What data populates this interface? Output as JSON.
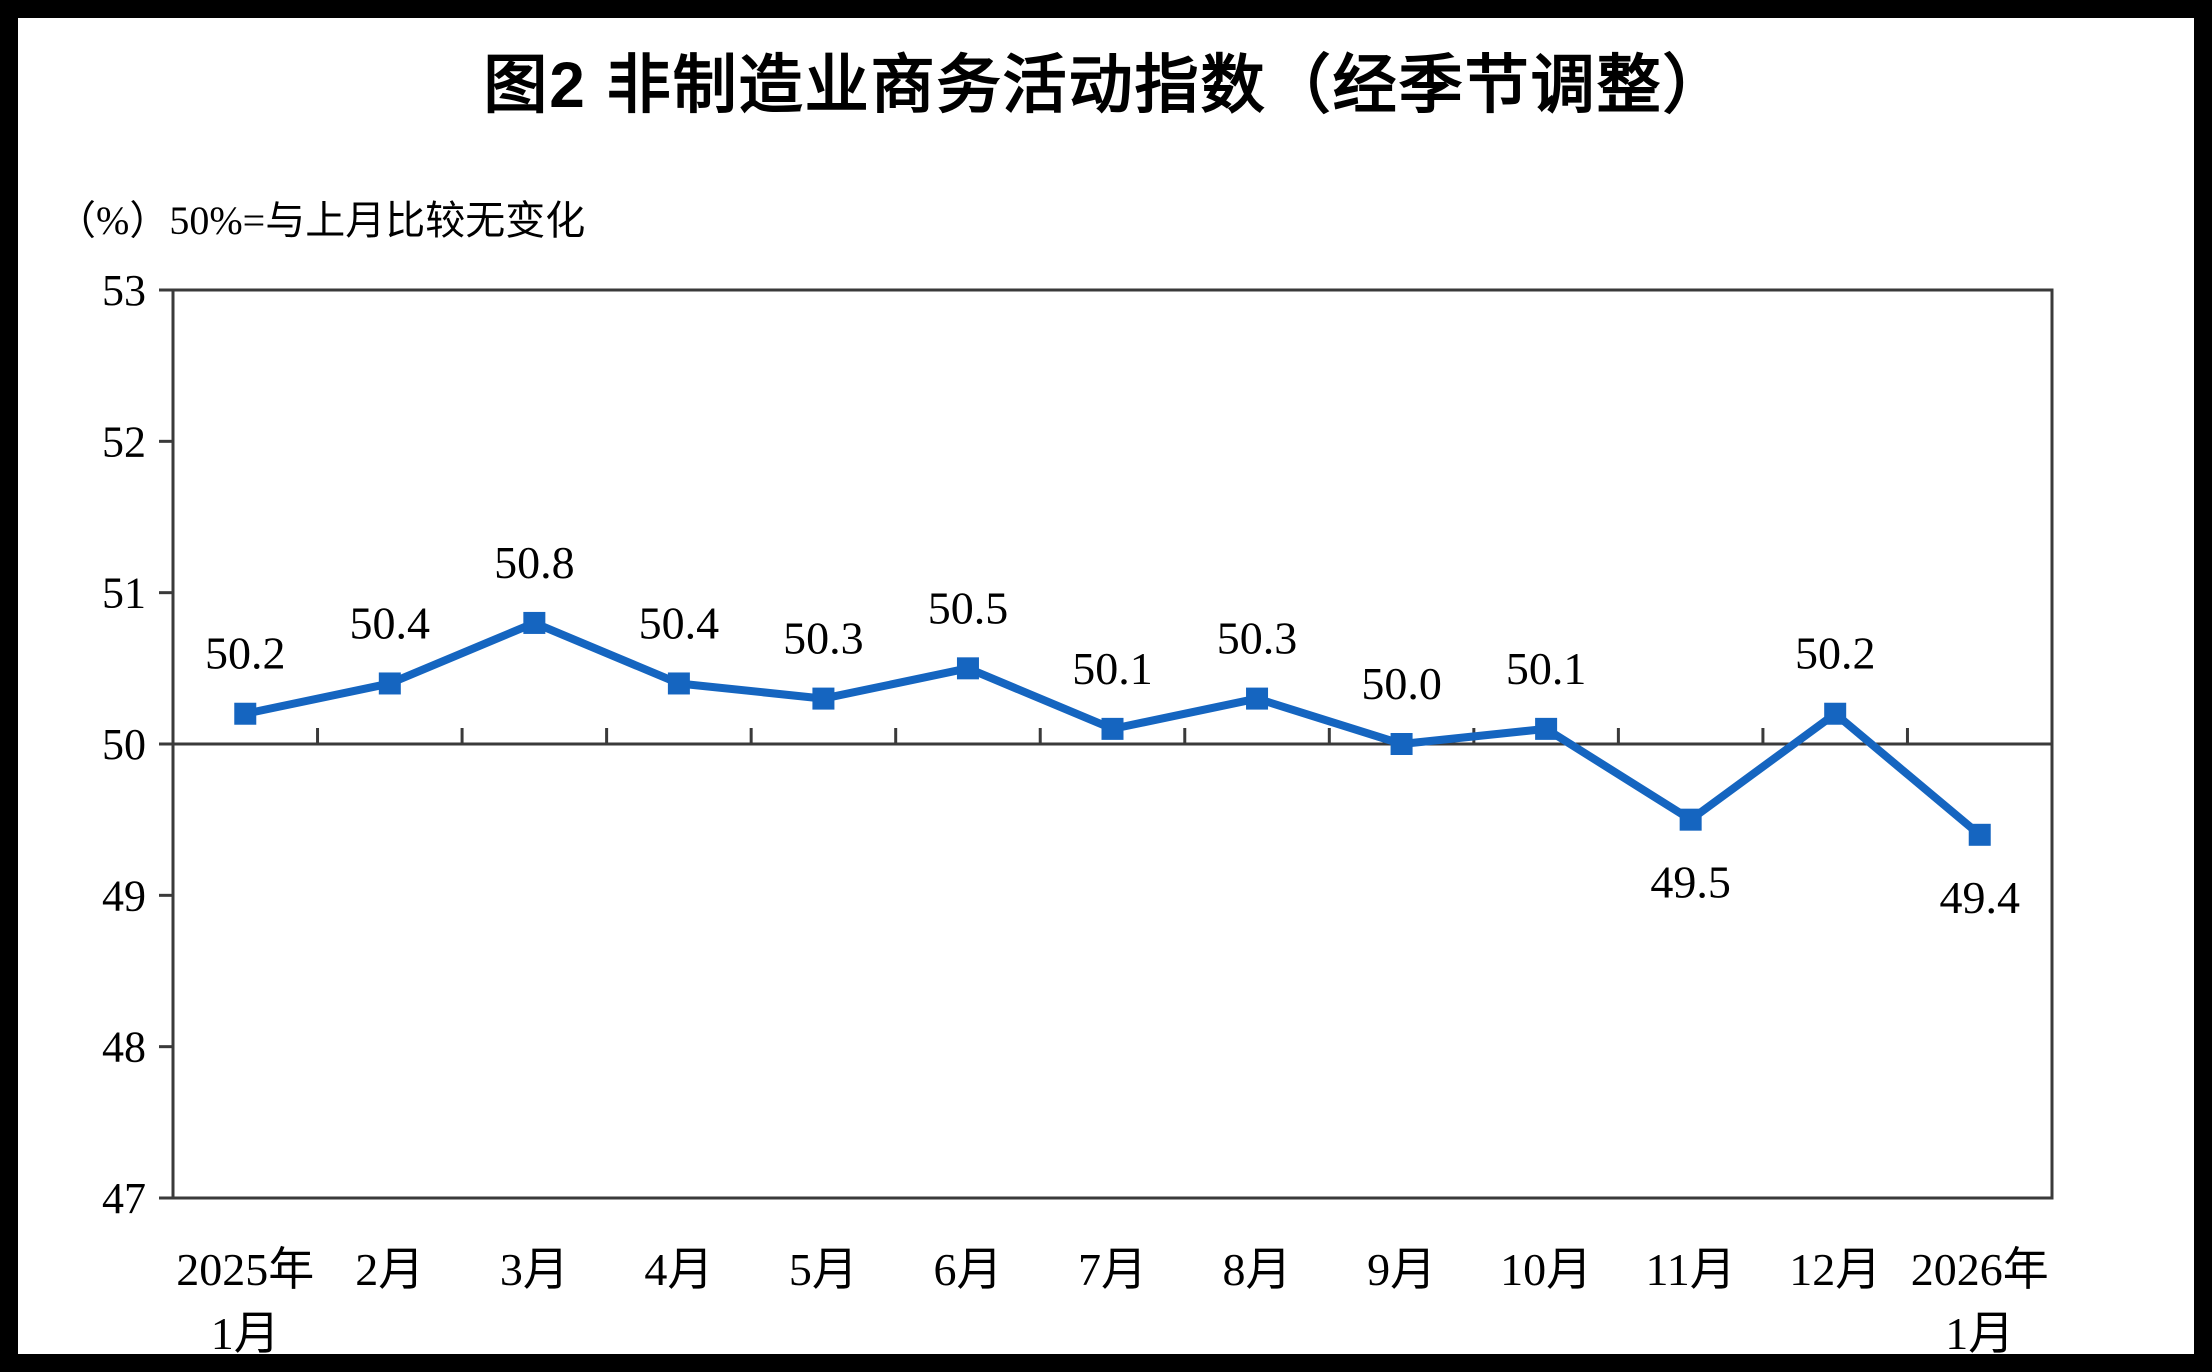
{
  "page": {
    "background_color": "#ffffff",
    "frame_color": "#000000"
  },
  "chart_data": {
    "type": "line",
    "title": "图2 非制造业商务活动指数（经季节调整）",
    "unit_note": "（%）50%=与上月比较无变化",
    "categories": [
      "2025年\n1月",
      "2月",
      "3月",
      "4月",
      "5月",
      "6月",
      "7月",
      "8月",
      "9月",
      "10月",
      "11月",
      "12月",
      "2026年\n1月"
    ],
    "values": [
      50.2,
      50.4,
      50.8,
      50.4,
      50.3,
      50.5,
      50.1,
      50.3,
      50.0,
      50.1,
      49.5,
      50.2,
      49.4
    ],
    "point_labels": [
      "50.2",
      "50.4",
      "50.8",
      "50.4",
      "50.3",
      "50.5",
      "50.1",
      "50.3",
      "50.0",
      "50.1",
      "49.5",
      "50.2",
      "49.4"
    ],
    "label_positions": [
      "above",
      "above",
      "above",
      "above",
      "above",
      "above",
      "above",
      "above",
      "above",
      "above",
      "below",
      "above",
      "below"
    ],
    "ylim": [
      47,
      53
    ],
    "yticks": [
      53,
      52,
      51,
      50,
      49,
      48,
      47
    ],
    "reference_line": 50,
    "grid": false,
    "legend": "none",
    "marker": "square",
    "line_color": "#1565C0",
    "axis_color": "#3A3A3A",
    "text_color": "#000000"
  }
}
